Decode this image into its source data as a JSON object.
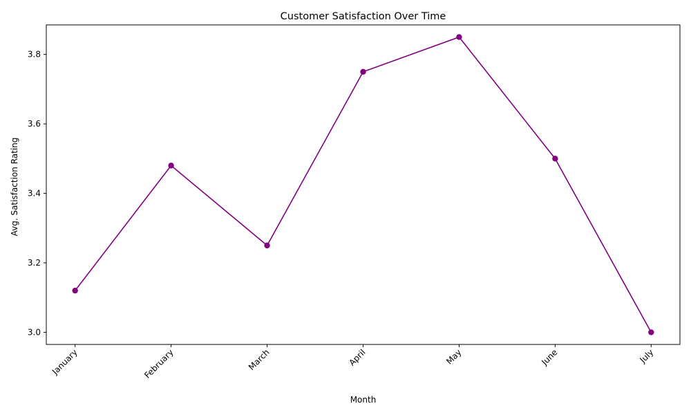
{
  "chart_data": {
    "type": "line",
    "title": "Customer Satisfaction Over Time",
    "xlabel": "Month",
    "ylabel": "Avg. Satisfaction Rating",
    "categories": [
      "January",
      "February",
      "March",
      "April",
      "May",
      "June",
      "July"
    ],
    "series": [
      {
        "values": [
          3.12,
          3.48,
          3.25,
          3.75,
          3.85,
          3.5,
          3.0
        ],
        "color": "#800080",
        "marker": "circle"
      }
    ],
    "ylim": [
      2.965,
      3.885
    ],
    "yticks": [
      "3.0",
      "3.2",
      "3.4",
      "3.6",
      "3.8"
    ],
    "x_tick_rotation_deg": 45,
    "grid": false,
    "legend": "none"
  }
}
